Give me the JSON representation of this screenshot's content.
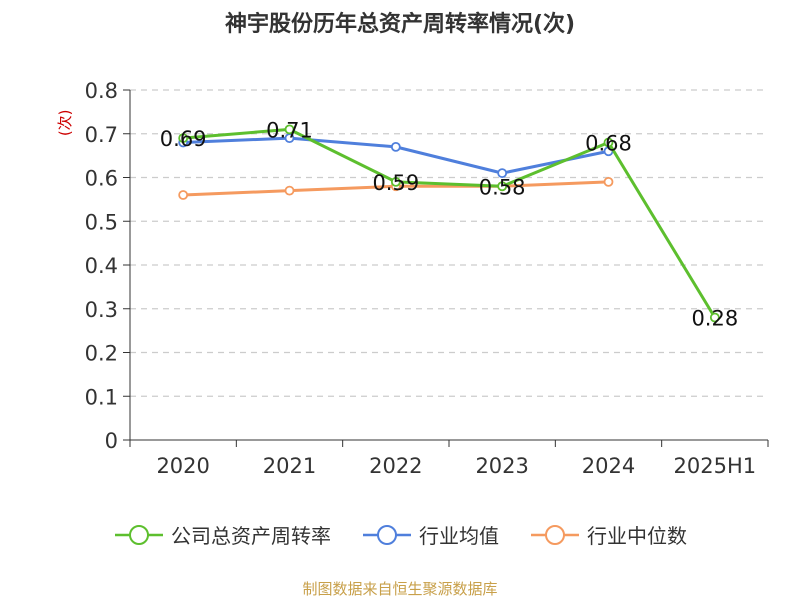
{
  "title": "神宇股份历年总资产周转率情况(次)",
  "source_text": "制图数据来自恒生聚源数据库",
  "colors": {
    "company": "#5dbf2e",
    "industry_avg": "#4f7fdc",
    "industry_median": "#f59a5f",
    "grid": "#cccccc",
    "axis": "#333333",
    "ylabel": "#cc0000"
  },
  "chart_data": {
    "type": "line",
    "title": "神宇股份历年总资产周转率情况(次)",
    "ylabel": "(次)",
    "xlabel": "",
    "categories": [
      "2020",
      "2021",
      "2022",
      "2023",
      "2024",
      "2025H1"
    ],
    "ylim": [
      0,
      0.8
    ],
    "yticks": [
      0,
      0.1,
      0.2,
      0.3,
      0.4,
      0.5,
      0.6,
      0.7,
      0.8
    ],
    "ytick_labels": [
      "0",
      "0.1",
      "0.2",
      "0.3",
      "0.4",
      "0.5",
      "0.6",
      "0.7",
      "0.8"
    ],
    "grid": true,
    "legend_position": "bottom",
    "series": [
      {
        "name": "公司总资产周转率",
        "color_key": "company",
        "values": [
          0.69,
          0.71,
          0.59,
          0.58,
          0.68,
          0.28
        ],
        "labels": [
          "0.69",
          "0.71",
          "0.59",
          "0.58",
          "0.68",
          "0.28"
        ]
      },
      {
        "name": "行业均值",
        "color_key": "industry_avg",
        "values": [
          0.68,
          0.69,
          0.67,
          0.61,
          0.66,
          null
        ],
        "labels": null
      },
      {
        "name": "行业中位数",
        "color_key": "industry_median",
        "values": [
          0.56,
          0.57,
          0.58,
          0.58,
          0.59,
          null
        ],
        "labels": null
      }
    ]
  }
}
